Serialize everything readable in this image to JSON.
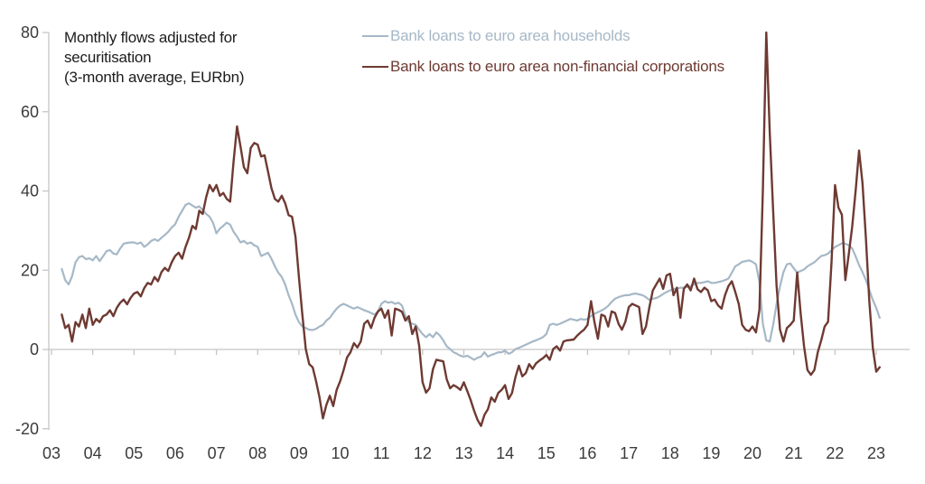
{
  "note_lines": [
    "Monthly flows adjusted for",
    "securitisation",
    "(3-month average, EURbn)"
  ],
  "colors": {
    "background": "#ffffff",
    "axis_line": "#c6c5c4",
    "zero_line": "#c6c5c4",
    "tick_text": "#3b3b3b",
    "note_text": "#1c1c1c"
  },
  "chart_data": {
    "type": "line",
    "title": "",
    "xlabel": "",
    "ylabel": "",
    "grid": "zero-line-only",
    "legend_position": "top-center",
    "x_axis": {
      "min": 2003,
      "max": 2023.5,
      "tick_years": [
        2003,
        2004,
        2005,
        2006,
        2007,
        2008,
        2009,
        2010,
        2011,
        2012,
        2013,
        2014,
        2015,
        2016,
        2017,
        2018,
        2019,
        2020,
        2021,
        2022,
        2023
      ],
      "tick_labels": [
        "03",
        "04",
        "05",
        "06",
        "07",
        "08",
        "09",
        "10",
        "11",
        "12",
        "13",
        "14",
        "15",
        "16",
        "17",
        "18",
        "19",
        "20",
        "21",
        "22",
        "23"
      ]
    },
    "y_axis": {
      "min": -20,
      "max": 80,
      "ticks": [
        80,
        60,
        40,
        20,
        0,
        -20
      ],
      "tick_labels": [
        "80",
        "60",
        "40",
        "20",
        "0",
        "-20"
      ]
    },
    "series": [
      {
        "name": "Bank loans to euro area households",
        "color": "#a6b8c7",
        "stroke_width": 2.2,
        "start_year": 2003.25,
        "frequency": "monthly",
        "values": [
          20.3,
          17.5,
          16.4,
          18.5,
          22.0,
          23.3,
          23.6,
          22.8,
          23.0,
          22.5,
          23.6,
          22.3,
          23.5,
          24.8,
          25.1,
          24.2,
          24.0,
          25.5,
          26.7,
          26.9,
          27.0,
          27.0,
          26.7,
          27.0,
          25.9,
          26.5,
          27.4,
          27.8,
          27.4,
          28.2,
          28.9,
          29.7,
          30.8,
          31.6,
          33.5,
          35.0,
          36.5,
          36.9,
          36.3,
          35.8,
          36.1,
          35.2,
          34.2,
          33.5,
          32.0,
          29.3,
          30.5,
          31.2,
          32.0,
          31.5,
          29.7,
          28.5,
          27.0,
          27.4,
          26.7,
          27.0,
          26.3,
          25.9,
          23.6,
          24.0,
          24.4,
          22.9,
          21.0,
          19.4,
          18.3,
          16.4,
          13.7,
          11.5,
          8.8,
          6.9,
          5.8,
          5.4,
          5.0,
          4.9,
          5.2,
          5.8,
          6.2,
          7.3,
          8.0,
          9.2,
          10.3,
          11.1,
          11.5,
          11.1,
          10.7,
          10.3,
          10.7,
          10.3,
          9.9,
          9.6,
          9.2,
          8.8,
          9.6,
          11.5,
          12.2,
          11.8,
          12.0,
          11.5,
          11.8,
          11.1,
          8.4,
          6.9,
          6.5,
          6.2,
          5.0,
          3.9,
          3.1,
          3.9,
          3.1,
          4.3,
          3.5,
          2.3,
          0.8,
          0.1,
          -0.7,
          -1.1,
          -1.6,
          -1.8,
          -1.6,
          -2.1,
          -2.6,
          -2.1,
          -1.8,
          -0.7,
          -1.8,
          -1.4,
          -1.1,
          -0.7,
          -0.7,
          -0.3,
          -1.1,
          -0.7,
          0.1,
          0.4,
          0.8,
          1.2,
          1.6,
          2.0,
          2.3,
          2.7,
          3.1,
          3.9,
          6.2,
          6.5,
          6.2,
          6.5,
          6.9,
          7.3,
          7.7,
          7.5,
          7.3,
          7.7,
          7.5,
          7.7,
          8.4,
          9.0,
          9.4,
          9.8,
          10.3,
          11.0,
          12.0,
          12.8,
          13.2,
          13.5,
          13.7,
          13.7,
          14.0,
          14.1,
          13.9,
          13.7,
          13.2,
          12.5,
          12.8,
          13.0,
          13.4,
          14.0,
          14.5,
          14.9,
          15.3,
          15.3,
          15.6,
          15.6,
          15.8,
          16.0,
          16.4,
          16.8,
          16.8,
          17.0,
          17.2,
          16.8,
          16.8,
          17.0,
          17.2,
          17.5,
          17.9,
          19.4,
          21.0,
          21.5,
          22.1,
          22.3,
          22.5,
          22.1,
          21.5,
          17.0,
          6.5,
          2.3,
          2.0,
          6.2,
          11.5,
          16.0,
          19.5,
          21.5,
          21.7,
          20.5,
          19.4,
          19.8,
          20.2,
          21.0,
          21.5,
          22.0,
          22.8,
          23.6,
          23.8,
          24.2,
          25.0,
          25.9,
          26.3,
          26.8,
          26.7,
          26.3,
          25.5,
          23.5,
          21.3,
          19.5,
          17.5,
          15.0,
          12.5,
          10.5,
          8.0
        ]
      },
      {
        "name": "Bank loans to euro area non-financial corporations",
        "color": "#6e3a32",
        "stroke_width": 2.4,
        "start_year": 2003.25,
        "frequency": "monthly",
        "values": [
          8.8,
          5.4,
          6.2,
          2.0,
          6.9,
          5.8,
          8.8,
          5.4,
          10.3,
          6.2,
          7.7,
          6.9,
          8.4,
          8.8,
          9.9,
          8.4,
          10.5,
          11.8,
          12.6,
          11.4,
          13.0,
          14.1,
          14.5,
          13.4,
          15.5,
          16.8,
          16.4,
          18.3,
          17.2,
          19.5,
          20.6,
          19.8,
          22.0,
          23.6,
          24.4,
          22.9,
          25.9,
          28.2,
          31.2,
          30.4,
          35.0,
          34.2,
          38.4,
          41.5,
          39.9,
          41.5,
          38.8,
          39.5,
          38.0,
          37.3,
          47.5,
          56.3,
          51.3,
          46.0,
          44.5,
          50.9,
          52.1,
          51.7,
          48.7,
          49.0,
          44.9,
          40.7,
          38.0,
          37.3,
          38.8,
          36.9,
          33.9,
          33.5,
          28.5,
          18.3,
          8.8,
          0.1,
          -3.7,
          -4.5,
          -8.0,
          -12.1,
          -17.4,
          -14.0,
          -11.7,
          -14.3,
          -10.2,
          -8.0,
          -5.2,
          -2.0,
          -0.7,
          1.6,
          0.5,
          2.0,
          6.5,
          7.3,
          5.4,
          8.0,
          9.6,
          10.3,
          8.0,
          9.9,
          3.5,
          10.3,
          10.0,
          9.5,
          7.3,
          8.4,
          3.9,
          5.8,
          1.0,
          -8.3,
          -10.9,
          -9.8,
          -5.0,
          -2.6,
          -2.8,
          -3.0,
          -7.5,
          -9.8,
          -9.0,
          -9.5,
          -10.2,
          -8.3,
          -10.5,
          -12.8,
          -15.5,
          -17.8,
          -19.3,
          -16.5,
          -15.1,
          -12.1,
          -13.2,
          -11.0,
          -10.2,
          -9.0,
          -12.5,
          -11.0,
          -7.0,
          -4.1,
          -6.8,
          -6.0,
          -3.7,
          -4.9,
          -3.5,
          -2.8,
          -2.2,
          -1.4,
          -2.6,
          0.1,
          0.8,
          -0.3,
          2.0,
          2.3,
          2.4,
          2.5,
          3.5,
          4.3,
          5.0,
          6.2,
          12.2,
          6.9,
          2.7,
          8.8,
          8.4,
          5.8,
          9.6,
          9.2,
          6.5,
          5.0,
          7.0,
          10.7,
          11.5,
          11.1,
          10.7,
          3.9,
          5.8,
          10.7,
          14.9,
          16.4,
          17.9,
          15.3,
          18.7,
          19.1,
          13.7,
          15.6,
          8.0,
          15.3,
          16.4,
          14.9,
          17.9,
          15.2,
          14.5,
          15.6,
          14.9,
          12.2,
          12.6,
          11.1,
          10.3,
          13.7,
          16.0,
          17.2,
          14.5,
          11.5,
          6.2,
          5.0,
          4.6,
          5.8,
          4.3,
          10.0,
          40.0,
          80.0,
          55.0,
          35.0,
          16.0,
          5.0,
          2.0,
          5.4,
          6.2,
          7.3,
          19.4,
          9.2,
          0.8,
          -5.2,
          -6.4,
          -5.2,
          -0.7,
          2.3,
          5.8,
          7.0,
          22.0,
          41.5,
          35.8,
          34.0,
          17.5,
          24.0,
          31.0,
          40.0,
          50.2,
          42.0,
          28.0,
          12.0,
          0.5,
          -5.6,
          -4.5
        ]
      }
    ]
  }
}
